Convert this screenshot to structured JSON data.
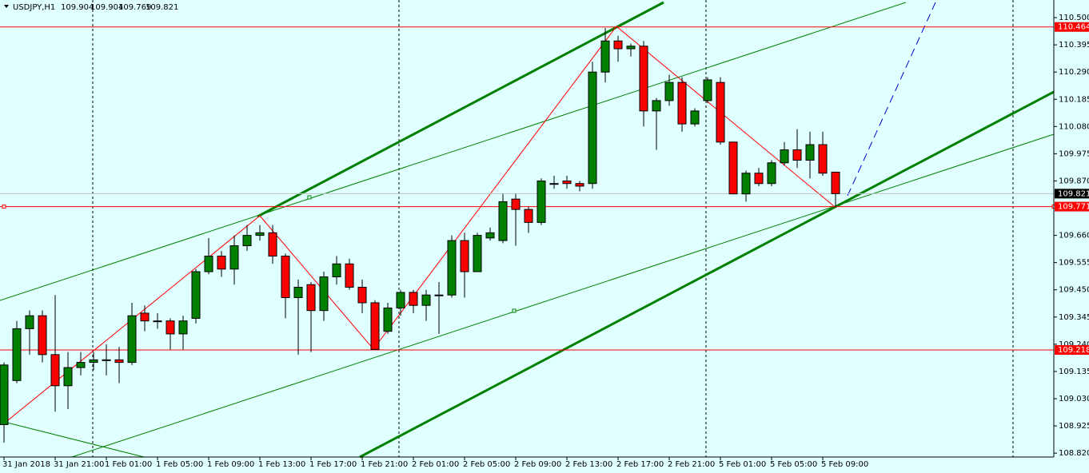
{
  "chart_data": {
    "type": "candlestick",
    "header": {
      "symbol": "USDJPY,H1",
      "ohlc": [
        109.904,
        109.904,
        109.769,
        109.821
      ]
    },
    "categories": [
      "31 Jan 2018",
      null,
      null,
      null,
      "31 Jan 21:00",
      null,
      null,
      null,
      "1 Feb 01:00",
      null,
      null,
      null,
      "1 Feb 05:00",
      null,
      null,
      null,
      "1 Feb 09:00",
      null,
      null,
      null,
      "1 Feb 13:00",
      null,
      null,
      null,
      "1 Feb 17:00",
      null,
      null,
      null,
      "1 Feb 21:00",
      null,
      null,
      null,
      "2 Feb 01:00",
      null,
      null,
      null,
      "2 Feb 05:00",
      null,
      null,
      null,
      "2 Feb 09:00",
      null,
      null,
      null,
      "2 Feb 13:00",
      null,
      null,
      null,
      "2 Feb 17:00",
      null,
      null,
      null,
      "2 Feb 21:00",
      null,
      null,
      null,
      "5 Feb 01:00",
      null,
      null,
      null,
      "5 Feb 05:00",
      null,
      null,
      null,
      "5 Feb 09:00",
      null
    ],
    "open": [
      108.93,
      109.1,
      109.3,
      109.35,
      109.2,
      109.08,
      109.15,
      109.17,
      109.18,
      109.18,
      109.17,
      109.36,
      109.33,
      109.33,
      109.28,
      109.34,
      109.52,
      109.58,
      109.53,
      109.62,
      109.66,
      109.67,
      109.58,
      109.42,
      109.47,
      109.37,
      109.5,
      109.55,
      109.46,
      109.4,
      109.29,
      109.38,
      109.44,
      109.39,
      109.43,
      109.43,
      109.64,
      109.52,
      109.65,
      109.64,
      109.8,
      109.76,
      109.71,
      109.86,
      109.87,
      109.86,
      109.86,
      110.29,
      110.41,
      110.38,
      110.39,
      110.14,
      110.18,
      110.25,
      110.09,
      110.18,
      110.25,
      110.02,
      109.82,
      109.9,
      109.86,
      109.94,
      109.99,
      109.95,
      110.01,
      109.904
    ],
    "high": [
      109.17,
      109.33,
      109.37,
      109.37,
      109.43,
      109.21,
      109.21,
      109.21,
      109.24,
      109.23,
      109.4,
      109.39,
      109.36,
      109.34,
      109.35,
      109.53,
      109.65,
      109.6,
      109.66,
      109.7,
      109.7,
      109.7,
      109.59,
      109.49,
      109.48,
      109.52,
      109.58,
      109.57,
      109.49,
      109.41,
      109.4,
      109.45,
      109.45,
      109.45,
      109.48,
      109.66,
      109.67,
      109.67,
      109.69,
      109.82,
      109.82,
      109.77,
      109.88,
      109.89,
      109.89,
      109.87,
      110.33,
      110.46,
      110.43,
      110.4,
      110.41,
      110.19,
      110.28,
      110.27,
      110.15,
      110.27,
      110.27,
      110.02,
      109.91,
      109.92,
      109.95,
      110.02,
      110.07,
      110.06,
      110.06,
      109.904
    ],
    "low": [
      108.86,
      109.09,
      109.2,
      109.17,
      108.98,
      108.99,
      109.12,
      109.14,
      109.12,
      109.09,
      109.16,
      109.29,
      109.3,
      109.22,
      109.22,
      109.32,
      109.51,
      109.5,
      109.47,
      109.6,
      109.64,
      109.55,
      109.34,
      109.2,
      109.21,
      109.33,
      109.47,
      109.45,
      109.36,
      109.22,
      109.28,
      109.35,
      109.36,
      109.33,
      109.28,
      109.42,
      109.42,
      109.52,
      109.64,
      109.63,
      109.62,
      109.67,
      109.7,
      109.84,
      109.84,
      109.83,
      109.84,
      110.25,
      110.33,
      110.35,
      110.08,
      109.99,
      110.16,
      110.06,
      110.08,
      110.17,
      110.01,
      109.82,
      109.79,
      109.85,
      109.85,
      109.93,
      109.92,
      109.88,
      109.89,
      109.769
    ],
    "close": [
      109.16,
      109.3,
      109.35,
      109.2,
      109.08,
      109.15,
      109.17,
      109.18,
      109.18,
      109.17,
      109.35,
      109.33,
      109.33,
      109.28,
      109.33,
      109.52,
      109.58,
      109.53,
      109.62,
      109.66,
      109.67,
      109.58,
      109.42,
      109.46,
      109.37,
      109.5,
      109.55,
      109.46,
      109.4,
      109.22,
      109.38,
      109.44,
      109.39,
      109.43,
      109.43,
      109.64,
      109.52,
      109.66,
      109.67,
      109.79,
      109.76,
      109.71,
      109.87,
      109.86,
      109.86,
      109.85,
      110.29,
      110.41,
      110.38,
      110.39,
      110.14,
      110.18,
      110.25,
      110.09,
      110.14,
      110.26,
      110.02,
      109.82,
      109.9,
      109.86,
      109.94,
      109.99,
      109.95,
      110.01,
      109.9,
      109.821
    ],
    "bull_color": "#008000",
    "bear_color": "#ff0000",
    "ylim": [
      108.805,
      110.568
    ],
    "yticks": [
      {
        "value": 110.5,
        "label": "110.500"
      },
      110.395,
      {
        "value": 110.29,
        "label": "110.290"
      },
      110.185,
      {
        "value": 110.08,
        "label": "110.080"
      },
      109.975,
      {
        "value": 109.87,
        "label": "109.870"
      },
      {
        "value": 109.66,
        "label": "109.660"
      },
      109.555,
      {
        "value": 109.45,
        "label": "109.450"
      },
      109.345,
      {
        "value": 109.24,
        "label": "109.240"
      },
      109.135,
      {
        "value": 109.03,
        "label": "109.030"
      },
      108.925,
      {
        "value": 108.82,
        "label": "108.820"
      }
    ],
    "hlines": [
      {
        "value": 110.464,
        "color": "#ff0000"
      },
      {
        "value": 109.771,
        "color": "#ff0000"
      },
      {
        "value": 109.218,
        "color": "#ff0000"
      }
    ],
    "current_price": 109.821
  }
}
